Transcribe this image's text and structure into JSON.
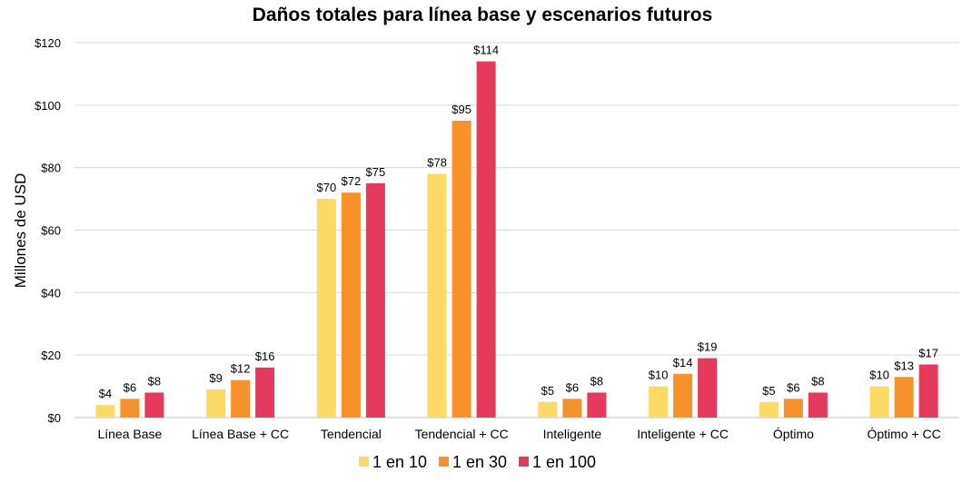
{
  "chart_data": {
    "type": "bar",
    "title": "Daños totales para línea base y escenarios futuros",
    "xlabel": "",
    "ylabel": "Millones de USD",
    "ylim": [
      0,
      120
    ],
    "yticks": [
      0,
      20,
      40,
      60,
      80,
      100,
      120
    ],
    "ytick_labels": [
      "$0",
      "$20",
      "$40",
      "$60",
      "$80",
      "$100",
      "$120"
    ],
    "grid": true,
    "legend_position": "bottom",
    "categories": [
      "Línea Base",
      "Línea Base + CC",
      "Tendencial",
      "Tendencial + CC",
      "Inteligente",
      "Inteligente + CC",
      "Óptimo",
      "Óptimo + CC"
    ],
    "series": [
      {
        "name": "1 en 10",
        "color": "#FDD966",
        "values": [
          4,
          9,
          70,
          78,
          5,
          10,
          5,
          10
        ],
        "labels": [
          "$4",
          "$9",
          "$70",
          "$78",
          "$5",
          "$10",
          "$5",
          "$10"
        ]
      },
      {
        "name": "1 en 30",
        "color": "#F7922A",
        "values": [
          6,
          12,
          72,
          95,
          6,
          14,
          6,
          13
        ],
        "labels": [
          "$6",
          "$12",
          "$72",
          "$95",
          "$6",
          "$14",
          "$6",
          "$13"
        ]
      },
      {
        "name": "1 en 100",
        "color": "#E53A5C",
        "values": [
          8,
          16,
          75,
          114,
          8,
          19,
          8,
          17
        ],
        "labels": [
          "$8",
          "$16",
          "$75",
          "$114",
          "$8",
          "$19",
          "$8",
          "$17"
        ]
      }
    ]
  }
}
